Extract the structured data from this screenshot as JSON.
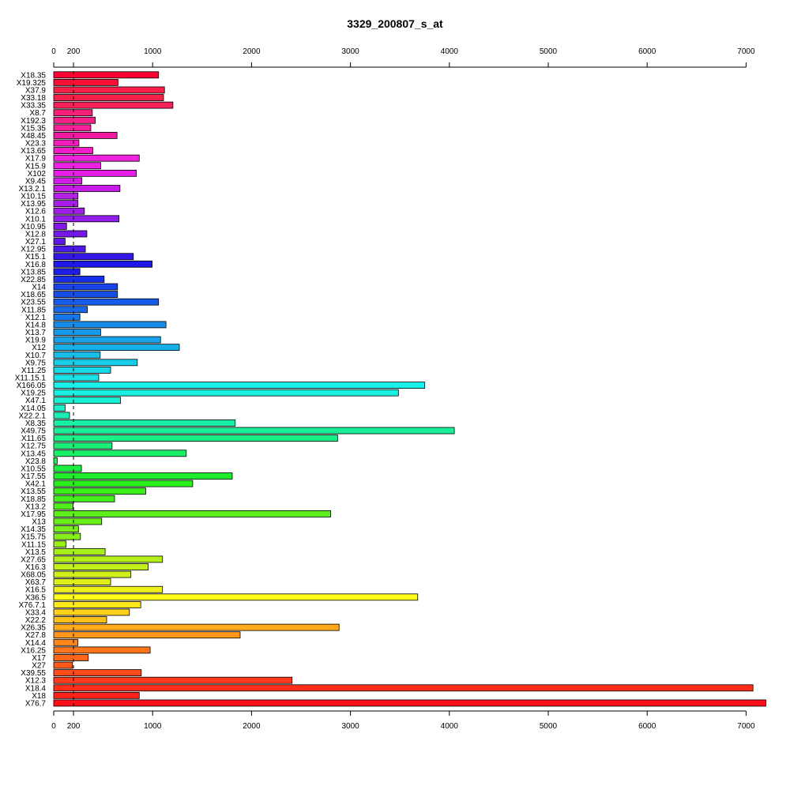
{
  "chart_data": {
    "type": "bar",
    "orientation": "horizontal",
    "title": "3329_200807_s_at",
    "xlabel": "",
    "ylabel": "",
    "xlim": [
      0,
      7200
    ],
    "x_ticks": [
      0,
      200,
      1000,
      2000,
      3000,
      4000,
      5000,
      6000,
      7000
    ],
    "reference_line": 200,
    "axes": "top-and-bottom",
    "grid": false,
    "categories": [
      "X18.35",
      "X19.325",
      "X37.9",
      "X33.18",
      "X33.35",
      "X8.7",
      "X192.3",
      "X15.35",
      "X48.45",
      "X23.3",
      "X13.65",
      "X17.9",
      "X15.9",
      "X102",
      "X9.45",
      "X13.2.1",
      "X10.15",
      "X13.95",
      "X12.6",
      "X10.1",
      "X10.95",
      "X12.8",
      "X27.1",
      "X12.95",
      "X15.1",
      "X16.8",
      "X13.85",
      "X22.85",
      "X14",
      "X18.65",
      "X23.55",
      "X11.85",
      "X12.1",
      "X14.8",
      "X13.7",
      "X19.9",
      "X12",
      "X10.7",
      "X9.75",
      "X11.25",
      "X11.15.1",
      "X166.05",
      "X19.25",
      "X47.1",
      "X14.05",
      "X22.2.1",
      "X8.35",
      "X49.75",
      "X11.65",
      "X12.75",
      "X13.45",
      "X23.8",
      "X10.55",
      "X17.55",
      "X42.1",
      "X13.55",
      "X18.85",
      "X13.2",
      "X17.95",
      "X13",
      "X14.35",
      "X15.75",
      "X11.15",
      "X13.5",
      "X27.65",
      "X16.3",
      "X68.05",
      "X63.7",
      "X16.5",
      "X36.5",
      "X76.7.1",
      "X33.4",
      "X22.2",
      "X26.35",
      "X27.8",
      "X14.4",
      "X16.25",
      "X17",
      "X27",
      "X39.55",
      "X12.3",
      "X18.4",
      "X18",
      "X76.7"
    ],
    "values": [
      1060,
      650,
      1120,
      1110,
      1205,
      390,
      420,
      375,
      640,
      255,
      395,
      865,
      475,
      835,
      285,
      670,
      245,
      245,
      310,
      660,
      130,
      335,
      115,
      320,
      805,
      995,
      265,
      510,
      645,
      645,
      1060,
      340,
      265,
      1135,
      475,
      1080,
      1270,
      470,
      845,
      575,
      455,
      3750,
      3485,
      675,
      115,
      160,
      1835,
      4050,
      2870,
      590,
      1340,
      35,
      280,
      1805,
      1405,
      930,
      615,
      195,
      2800,
      485,
      250,
      270,
      125,
      520,
      1100,
      955,
      780,
      575,
      1100,
      3680,
      880,
      765,
      535,
      2885,
      1885,
      245,
      975,
      350,
      190,
      885,
      2410,
      7070,
      865,
      7200
    ],
    "colors": [
      "#ff0033",
      "#f70f35",
      "#f71e4a",
      "#f5204a",
      "#f72057",
      "#f72078",
      "#f52086",
      "#f72098",
      "#f21aa3",
      "#f21cbc",
      "#f21dc6",
      "#ef23dc",
      "#ee20e6",
      "#e61ee8",
      "#d21ee8",
      "#c71ce8",
      "#b420e8",
      "#a81ee8",
      "#9f1ee8",
      "#921de8",
      "#8517e8",
      "#7318e8",
      "#5f18e8",
      "#4c18e8",
      "#3418e8",
      "#1f18e8",
      "#1c1ee8",
      "#1830e8",
      "#1843e8",
      "#184ee8",
      "#185be8",
      "#1867e8",
      "#1877e8",
      "#188be8",
      "#1898e8",
      "#18a3e8",
      "#18b0e8",
      "#18bde8",
      "#18cde8",
      "#18d8e8",
      "#18e4e8",
      "#1af0ea",
      "#1af0e0",
      "#1af0d3",
      "#1af0c8",
      "#1aefb8",
      "#1aefa6",
      "#1aef98",
      "#1aef88",
      "#1aef78",
      "#1aef68",
      "#1aef55",
      "#1aef40",
      "#1cef2a",
      "#2aef1a",
      "#3aef1a",
      "#46ef1a",
      "#52ef1a",
      "#5cef1a",
      "#6aef1a",
      "#78ef1a",
      "#88ef1a",
      "#98ef1a",
      "#a6ef1a",
      "#b4ef1a",
      "#c2ef1a",
      "#d0ef1a",
      "#e0ef1a",
      "#eef01a",
      "#ffff1a",
      "#ffe91a",
      "#ffd21a",
      "#ffc01a",
      "#ffaa1a",
      "#ff961a",
      "#ff861a",
      "#ff761a",
      "#ff661a",
      "#ff581a",
      "#ff4a1a",
      "#ff3a1a",
      "#ff2e1a",
      "#ff221a",
      "#ff0f1a"
    ]
  }
}
